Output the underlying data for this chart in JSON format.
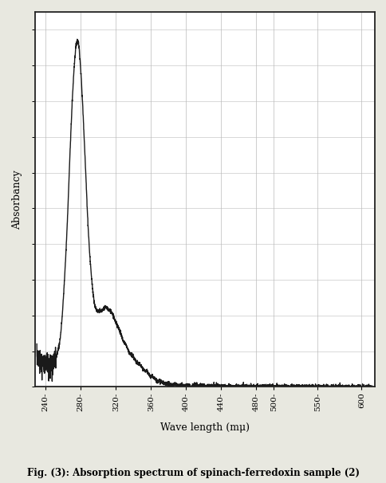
{
  "title": "Fig. (3): Absorption spectrum of spinach-ferredoxin sample (2)",
  "xlabel": "Wave length (mμ)",
  "ylabel": "Absorbancy",
  "x_tick_positions": [
    240,
    280,
    320,
    360,
    400,
    440,
    480,
    500,
    550,
    600
  ],
  "x_tick_labels": [
    "240-",
    "280-",
    "320-",
    "360-",
    "400-",
    "440-",
    "480-",
    "500-",
    "550-",
    "600"
  ],
  "xlim": [
    228,
    615
  ],
  "ylim": [
    0,
    1.05
  ],
  "line_color": "#1a1a1a",
  "background_color": "#ffffff",
  "grid_color": "#bbbbbb",
  "fig_background": "#e8e8e0"
}
